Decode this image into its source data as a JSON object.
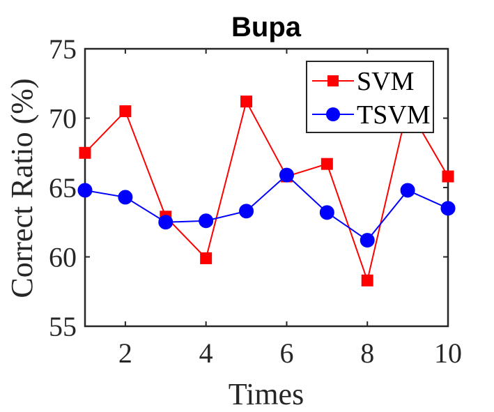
{
  "chart_data": {
    "type": "line",
    "title": "Bupa",
    "xlabel": "Times",
    "ylabel": "Correct Ratio (%)",
    "x": [
      1,
      2,
      3,
      4,
      5,
      6,
      7,
      8,
      9,
      10
    ],
    "xlim": [
      1,
      10
    ],
    "ylim": [
      55,
      75
    ],
    "xticks": [
      "2",
      "4",
      "6",
      "8",
      "10"
    ],
    "xtick_values": [
      2,
      4,
      6,
      8,
      10
    ],
    "yticks": [
      "55",
      "60",
      "65",
      "70",
      "75"
    ],
    "ytick_values": [
      55,
      60,
      65,
      70,
      75
    ],
    "grid": false,
    "legend_position": "top-right",
    "series": [
      {
        "name": "SVM",
        "color": "#ff0000",
        "marker": "square",
        "values": [
          67.5,
          70.5,
          62.9,
          59.9,
          71.2,
          65.8,
          66.7,
          58.3,
          70.8,
          65.8
        ]
      },
      {
        "name": "TSVM",
        "color": "#0000ff",
        "marker": "circle",
        "values": [
          64.8,
          64.3,
          62.5,
          62.6,
          63.3,
          65.9,
          63.2,
          61.2,
          64.8,
          63.5
        ]
      }
    ]
  }
}
